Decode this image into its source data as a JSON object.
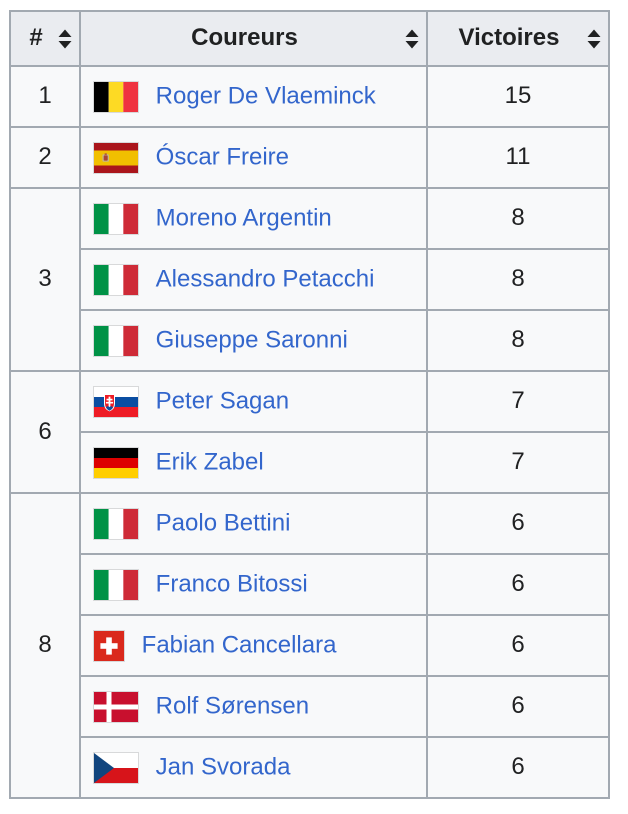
{
  "table": {
    "headers": [
      {
        "label": "#",
        "sortable": true
      },
      {
        "label": "Coureurs",
        "sortable": true
      },
      {
        "label": "Victoires",
        "sortable": true
      }
    ],
    "rows": [
      {
        "rank": "1",
        "rank_span": 1,
        "flag": "belgium",
        "flag_icon": "flag-belgium-icon",
        "name": "Roger De Vlaeminck",
        "victories": "15"
      },
      {
        "rank": "2",
        "rank_span": 1,
        "flag": "spain",
        "flag_icon": "flag-spain-icon",
        "name": "Óscar Freire",
        "victories": "11"
      },
      {
        "rank": "3",
        "rank_span": 3,
        "flag": "italy",
        "flag_icon": "flag-italy-icon",
        "name": "Moreno Argentin",
        "victories": "8"
      },
      {
        "flag": "italy",
        "flag_icon": "flag-italy-icon",
        "name": "Alessandro Petacchi",
        "victories": "8"
      },
      {
        "flag": "italy",
        "flag_icon": "flag-italy-icon",
        "name": "Giuseppe Saronni",
        "victories": "8"
      },
      {
        "rank": "6",
        "rank_span": 2,
        "flag": "slovakia",
        "flag_icon": "flag-slovakia-icon",
        "name": "Peter Sagan",
        "victories": "7"
      },
      {
        "flag": "germany",
        "flag_icon": "flag-germany-icon",
        "name": "Erik Zabel",
        "victories": "7"
      },
      {
        "rank": "8",
        "rank_span": 5,
        "flag": "italy",
        "flag_icon": "flag-italy-icon",
        "name": "Paolo Bettini",
        "victories": "6"
      },
      {
        "flag": "italy",
        "flag_icon": "flag-italy-icon",
        "name": "Franco Bitossi",
        "victories": "6"
      },
      {
        "flag": "switzerland",
        "flag_icon": "flag-switzerland-icon",
        "name": "Fabian Cancellara",
        "victories": "6"
      },
      {
        "flag": "denmark",
        "flag_icon": "flag-denmark-icon",
        "name": "Rolf Sørensen",
        "victories": "6"
      },
      {
        "flag": "czech-republic",
        "flag_icon": "flag-czech-republic-icon",
        "name": "Jan Svorada",
        "victories": "6"
      }
    ]
  },
  "icons": {
    "sort": "sort-both-icon"
  },
  "colors": {
    "link": "#3366cc",
    "header_bg": "#eaecf0",
    "cell_bg": "#f8f9fa",
    "border": "#a2a9b1",
    "text": "#202122"
  }
}
